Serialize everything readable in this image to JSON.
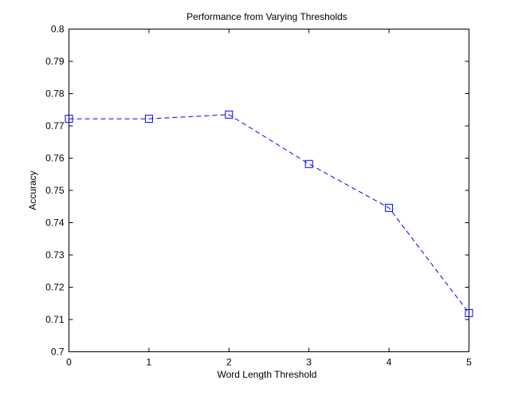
{
  "chart_data": {
    "type": "line",
    "title": "Performance from Varying Thresholds",
    "xlabel": "Word Length Threshold",
    "ylabel": "Accuracy",
    "xlim": [
      0,
      5
    ],
    "ylim": [
      0.7,
      0.8
    ],
    "xticks": [
      "0",
      "1",
      "2",
      "3",
      "4",
      "5"
    ],
    "yticks": [
      "0.7",
      "0.71",
      "0.72",
      "0.73",
      "0.74",
      "0.75",
      "0.76",
      "0.77",
      "0.78",
      "0.79",
      "0.8"
    ],
    "grid": false,
    "series": [
      {
        "x": [
          0,
          1,
          2,
          3,
          4,
          5
        ],
        "y": [
          0.7722,
          0.7722,
          0.7735,
          0.7582,
          0.7446,
          0.712
        ],
        "color": "#0000ff",
        "line_style": "dashed",
        "marker": "square"
      }
    ]
  }
}
